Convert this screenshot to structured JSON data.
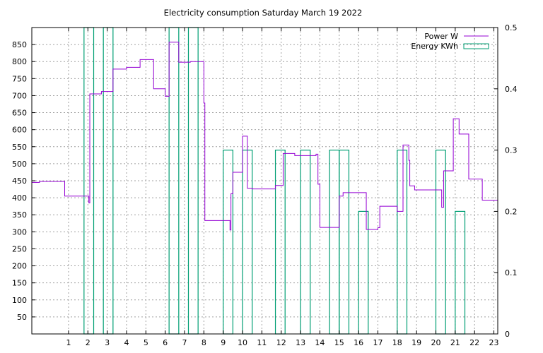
{
  "chart_data": {
    "type": "line",
    "title": "Electricity consumption Saturday March 19 2022",
    "xlabel": "",
    "ylabel": "",
    "y2label": "",
    "xlim": [
      -0.9,
      23.2
    ],
    "ylim": [
      0,
      900
    ],
    "y2lim": [
      0,
      0.5
    ],
    "x_ticks": [
      1,
      2,
      3,
      4,
      5,
      6,
      7,
      8,
      9,
      10,
      11,
      12,
      13,
      14,
      15,
      16,
      17,
      18,
      19,
      20,
      21,
      22,
      23
    ],
    "y_ticks": [
      50,
      100,
      150,
      200,
      250,
      300,
      350,
      400,
      450,
      500,
      550,
      600,
      650,
      700,
      750,
      800,
      850
    ],
    "y2_ticks": [
      0,
      0.1,
      0.2,
      0.3,
      0.4,
      0.5
    ],
    "grid": true,
    "legend_position": "top-right",
    "series": [
      {
        "name": "Power W",
        "axis": "left",
        "style": "steps",
        "color": "#9400d3",
        "points": [
          [
            -0.9,
            445
          ],
          [
            -0.5,
            448
          ],
          [
            0.8,
            405
          ],
          [
            2.0,
            405
          ],
          [
            2.05,
            385
          ],
          [
            2.1,
            705
          ],
          [
            2.7,
            712
          ],
          [
            3.3,
            778
          ],
          [
            4.0,
            783
          ],
          [
            4.7,
            806
          ],
          [
            5.4,
            720
          ],
          [
            6.0,
            698
          ],
          [
            6.2,
            857
          ],
          [
            6.7,
            798
          ],
          [
            7.3,
            800
          ],
          [
            8.0,
            678
          ],
          [
            8.05,
            333
          ],
          [
            9.3,
            333
          ],
          [
            9.35,
            305
          ],
          [
            9.4,
            412
          ],
          [
            9.5,
            475
          ],
          [
            10.0,
            581
          ],
          [
            10.25,
            428
          ],
          [
            10.5,
            426
          ],
          [
            11.7,
            436
          ],
          [
            12.1,
            530
          ],
          [
            12.7,
            524
          ],
          [
            13.8,
            528
          ],
          [
            13.9,
            440
          ],
          [
            14.0,
            313
          ],
          [
            14.9,
            313
          ],
          [
            15.0,
            405
          ],
          [
            15.2,
            415
          ],
          [
            16.3,
            415
          ],
          [
            16.4,
            307
          ],
          [
            17.0,
            312
          ],
          [
            17.1,
            375
          ],
          [
            17.9,
            375
          ],
          [
            18.0,
            360
          ],
          [
            18.3,
            555
          ],
          [
            18.6,
            510
          ],
          [
            18.65,
            435
          ],
          [
            18.9,
            423
          ],
          [
            20.2,
            423
          ],
          [
            20.3,
            372
          ],
          [
            20.4,
            479
          ],
          [
            20.9,
            632
          ],
          [
            21.2,
            587
          ],
          [
            21.7,
            455
          ],
          [
            22.4,
            393
          ],
          [
            23.2,
            393
          ]
        ]
      },
      {
        "name": "Energy KWh",
        "axis": "right",
        "style": "boxes",
        "color": "#009e73",
        "boxes": [
          {
            "x": 1.8,
            "w": 0.5,
            "value": 0.5
          },
          {
            "x": 2.8,
            "w": 0.5,
            "value": 0.5
          },
          {
            "x": 6.2,
            "w": 0.5,
            "value": 0.5
          },
          {
            "x": 7.2,
            "w": 0.5,
            "value": 0.5
          },
          {
            "x": 9.0,
            "w": 0.5,
            "value": 0.3
          },
          {
            "x": 10.0,
            "w": 0.5,
            "value": 0.3
          },
          {
            "x": 13.0,
            "w": 0.5,
            "value": 0.3
          },
          {
            "x": 15.0,
            "w": 0.5,
            "value": 0.3
          },
          {
            "x": 11.7,
            "w": 0.5,
            "value": 0.3
          },
          {
            "x": 14.5,
            "w": 0.5,
            "value": 0.3
          },
          {
            "x": 16.0,
            "w": 0.5,
            "value": 0.2
          },
          {
            "x": 18.0,
            "w": 0.5,
            "value": 0.3
          },
          {
            "x": 20.0,
            "w": 0.5,
            "value": 0.3
          },
          {
            "x": 21.0,
            "w": 0.5,
            "value": 0.2
          }
        ]
      }
    ]
  }
}
